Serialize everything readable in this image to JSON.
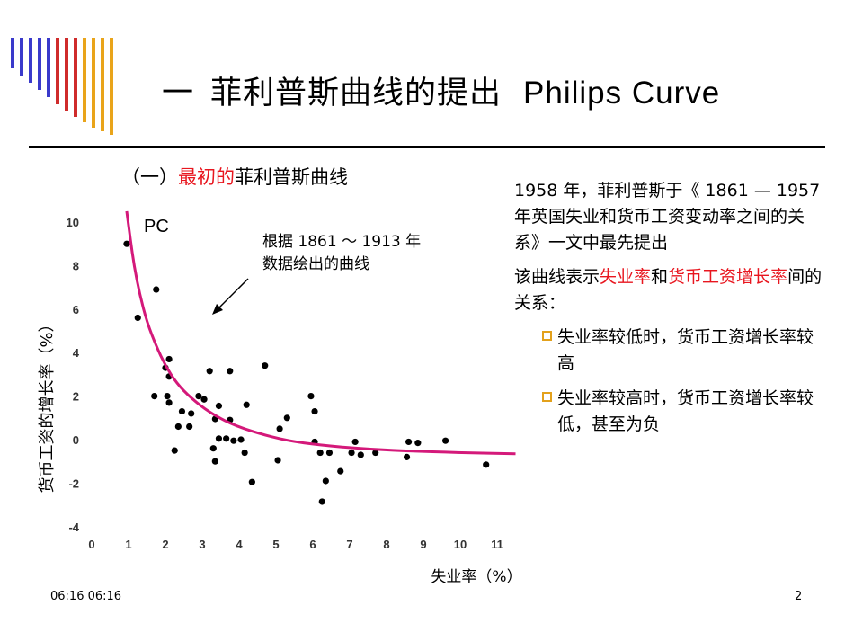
{
  "title": {
    "dash": "一",
    "cn": "菲利普斯曲线的提出",
    "en": "Philips Curve"
  },
  "subtitle": {
    "prefix": "（一）",
    "highlight": "最初的",
    "suffix": "菲利普斯曲线"
  },
  "chart_data": {
    "type": "scatter",
    "xlabel": "失业率（%）",
    "ylabel": "货币工资的增长率（%）",
    "curve_label": "PC",
    "annotation": [
      "根据 1861 ～ 1913 年",
      "数据绘出的曲线"
    ],
    "x_ticks": [
      "0",
      "1",
      "2",
      "3",
      "4",
      "5",
      "6",
      "7",
      "8",
      "9",
      "10",
      "11"
    ],
    "y_ticks": [
      "10",
      "8",
      "6",
      "4",
      "2",
      "0",
      "-2",
      "-4"
    ],
    "xlim": [
      0,
      11.8
    ],
    "ylim": [
      -4,
      10.5
    ],
    "points": [
      [
        0.95,
        9.0
      ],
      [
        1.25,
        5.6
      ],
      [
        1.75,
        6.9
      ],
      [
        1.7,
        2.0
      ],
      [
        2.0,
        3.3
      ],
      [
        2.1,
        3.7
      ],
      [
        2.1,
        2.9
      ],
      [
        2.05,
        2.0
      ],
      [
        2.1,
        1.7
      ],
      [
        2.25,
        -0.5
      ],
      [
        2.35,
        0.6
      ],
      [
        2.45,
        1.3
      ],
      [
        2.65,
        0.6
      ],
      [
        2.7,
        1.2
      ],
      [
        2.9,
        2.0
      ],
      [
        3.05,
        1.85
      ],
      [
        3.2,
        3.15
      ],
      [
        3.3,
        -0.4
      ],
      [
        3.35,
        -1.0
      ],
      [
        3.35,
        0.95
      ],
      [
        3.45,
        1.55
      ],
      [
        3.45,
        0.05
      ],
      [
        3.65,
        0.05
      ],
      [
        3.75,
        3.15
      ],
      [
        3.75,
        0.9
      ],
      [
        3.85,
        -0.05
      ],
      [
        4.05,
        0.0
      ],
      [
        4.15,
        -0.6
      ],
      [
        4.2,
        1.6
      ],
      [
        4.35,
        -1.95
      ],
      [
        4.7,
        3.4
      ],
      [
        5.05,
        -0.95
      ],
      [
        5.1,
        0.5
      ],
      [
        5.3,
        1.0
      ],
      [
        5.95,
        2.0
      ],
      [
        6.05,
        1.3
      ],
      [
        6.05,
        -0.1
      ],
      [
        6.2,
        -0.6
      ],
      [
        6.25,
        -2.85
      ],
      [
        6.35,
        -1.9
      ],
      [
        6.45,
        -0.6
      ],
      [
        6.75,
        -1.45
      ],
      [
        7.05,
        -0.6
      ],
      [
        7.15,
        -0.1
      ],
      [
        7.3,
        -0.7
      ],
      [
        7.7,
        -0.6
      ],
      [
        8.55,
        -0.8
      ],
      [
        8.6,
        -0.1
      ],
      [
        8.85,
        -0.15
      ],
      [
        9.6,
        -0.05
      ],
      [
        10.7,
        -1.15
      ]
    ],
    "curve": [
      [
        0.95,
        10.5
      ],
      [
        1.05,
        9.2
      ],
      [
        1.15,
        8.0
      ],
      [
        1.3,
        6.7
      ],
      [
        1.5,
        5.4
      ],
      [
        1.75,
        4.3
      ],
      [
        2.0,
        3.4
      ],
      [
        2.3,
        2.6
      ],
      [
        2.7,
        1.9
      ],
      [
        3.2,
        1.25
      ],
      [
        3.8,
        0.7
      ],
      [
        4.5,
        0.3
      ],
      [
        5.3,
        -0.05
      ],
      [
        6.2,
        -0.25
      ],
      [
        7.2,
        -0.4
      ],
      [
        8.5,
        -0.52
      ],
      [
        10.0,
        -0.6
      ],
      [
        11.5,
        -0.65
      ]
    ]
  },
  "right_panel": {
    "p1": "1958 年，菲利普斯于《 1861 — 1957 年英国失业和货币工资变动率之间的关系》一文中最先提出",
    "p2_a": "该曲线表示",
    "p2_b": "失业率",
    "p2_c": "和",
    "p2_d": "货币工资增长率",
    "p2_e": "间的关系：",
    "bullets": [
      "失业率较低时，货币工资增长率较高",
      "失业率较高时，货币工资增长率较低，甚至为负"
    ]
  },
  "footer": {
    "time": "06:16 06:16",
    "page": "2"
  },
  "colors": {
    "curve": "#d4197a",
    "accent_red": "#e8161f",
    "bullet": "#e3a11c"
  }
}
